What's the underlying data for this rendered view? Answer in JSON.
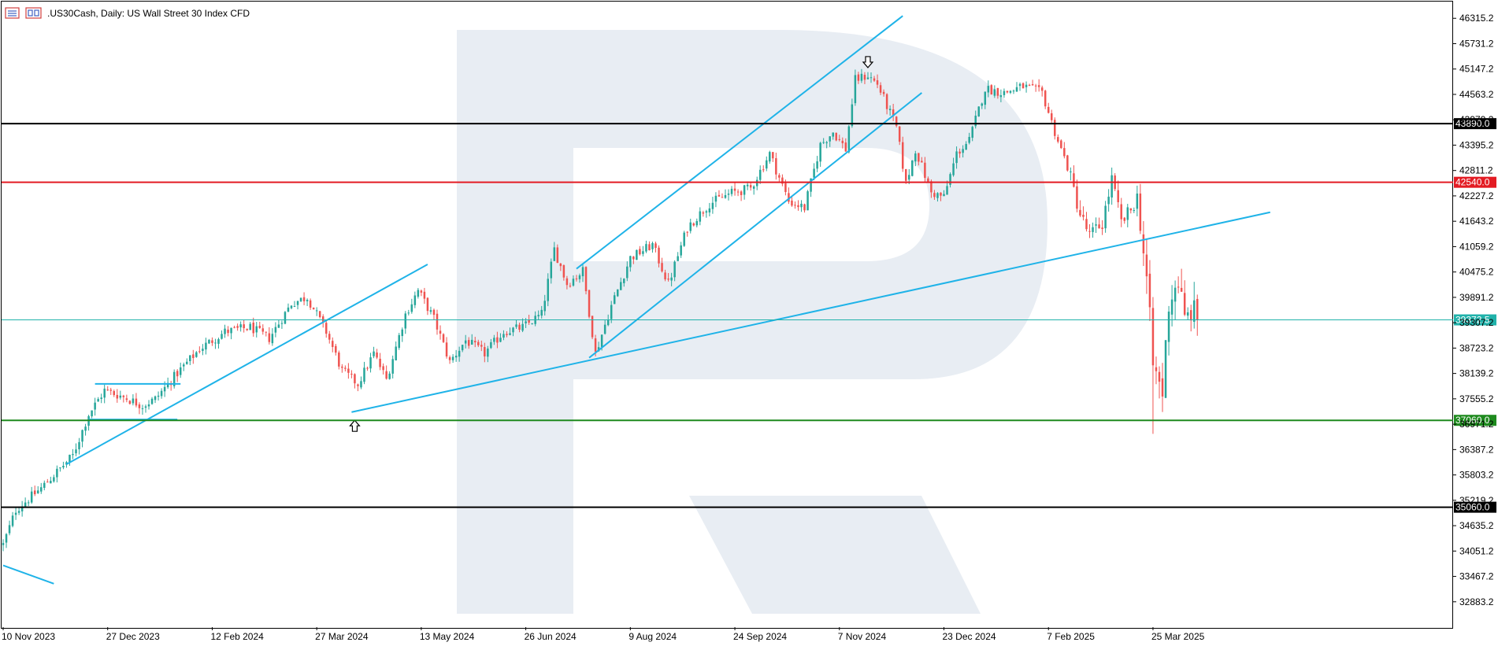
{
  "chart_data": {
    "type": "candlestick",
    "title": ".US30Cash, Daily:  US Wall Street 30 Index CFD",
    "ylim": [
      32300,
      46700
    ],
    "y_ticks": [
      46315.2,
      45731.2,
      45147.2,
      44563.2,
      43979.2,
      43395.2,
      42811.2,
      42227.2,
      41643.2,
      41059.2,
      40475.2,
      39891.2,
      39307.2,
      38723.2,
      38139.2,
      37555.2,
      36971.2,
      36387.2,
      35803.2,
      35219.2,
      34635.2,
      34051.2,
      33467.2,
      32883.2
    ],
    "x_ticks": [
      {
        "label": "10 Nov 2023",
        "t": 0
      },
      {
        "label": "27 Dec 2023",
        "t": 33
      },
      {
        "label": "12 Feb 2024",
        "t": 66
      },
      {
        "label": "27 Mar 2024",
        "t": 99
      },
      {
        "label": "13 May 2024",
        "t": 132
      },
      {
        "label": "26 Jun 2024",
        "t": 165
      },
      {
        "label": "9 Aug 2024",
        "t": 198
      },
      {
        "label": "24 Sep 2024",
        "t": 231
      },
      {
        "label": "7 Nov 2024",
        "t": 264
      },
      {
        "label": "23 Dec 2024",
        "t": 297
      },
      {
        "label": "7 Feb 2025",
        "t": 330
      },
      {
        "label": "25 Mar 2025",
        "t": 363
      }
    ],
    "t_range": [
      0,
      457
    ],
    "current_price": {
      "value": 39372.5,
      "label": "39372.5",
      "color": "#20b2aa"
    },
    "levels": [
      {
        "name": "resistance-2",
        "value": 43890.0,
        "label": "43890.0",
        "color": "#000000"
      },
      {
        "name": "resistance-1",
        "value": 42540.0,
        "label": "42540.0",
        "color": "#e31b23"
      },
      {
        "name": "support-1",
        "value": 37060.0,
        "label": "37060.0",
        "color": "#1e8a1e"
      },
      {
        "name": "support-2",
        "value": 35060.0,
        "label": "35060.0",
        "color": "#000000"
      }
    ],
    "trendlines": [
      {
        "name": "pre-trend-line",
        "from": [
          0,
          33720
        ],
        "to": [
          16,
          33300
        ]
      },
      {
        "name": "rising-support-line-1",
        "from": [
          20,
          36050
        ],
        "to": [
          134,
          40650
        ]
      },
      {
        "name": "flag-upper-line",
        "from": [
          29,
          37900
        ],
        "to": [
          56,
          37900
        ]
      },
      {
        "name": "flag-lower-line",
        "from": [
          27,
          37080
        ],
        "to": [
          55,
          37080
        ]
      },
      {
        "name": "long-term-support-line",
        "from": [
          110,
          37250
        ],
        "to": [
          400,
          41850
        ]
      },
      {
        "name": "channel-upper-line",
        "from": [
          181,
          40550
        ],
        "to": [
          284,
          46370
        ]
      },
      {
        "name": "channel-lower-line",
        "from": [
          185,
          38500
        ],
        "to": [
          290,
          44600
        ]
      }
    ],
    "arrows": [
      {
        "name": "low-arrow-marker",
        "t": 111,
        "value": 37060,
        "direction": "up"
      },
      {
        "name": "peak-arrow-marker",
        "t": 273,
        "value": 45180,
        "direction": "down"
      }
    ],
    "waypoints": [
      [
        0,
        34200
      ],
      [
        4,
        35000
      ],
      [
        12,
        35500
      ],
      [
        22,
        36250
      ],
      [
        27,
        37200
      ],
      [
        32,
        37750
      ],
      [
        38,
        37600
      ],
      [
        44,
        37400
      ],
      [
        48,
        37550
      ],
      [
        55,
        38150
      ],
      [
        62,
        38700
      ],
      [
        70,
        39100
      ],
      [
        78,
        39200
      ],
      [
        84,
        38950
      ],
      [
        91,
        39750
      ],
      [
        96,
        39900
      ],
      [
        102,
        39100
      ],
      [
        107,
        38200
      ],
      [
        112,
        37900
      ],
      [
        117,
        38600
      ],
      [
        121,
        38000
      ],
      [
        127,
        39500
      ],
      [
        131,
        40050
      ],
      [
        136,
        39400
      ],
      [
        141,
        38400
      ],
      [
        146,
        38900
      ],
      [
        152,
        38600
      ],
      [
        158,
        39100
      ],
      [
        164,
        39200
      ],
      [
        170,
        39500
      ],
      [
        174,
        41000
      ],
      [
        178,
        40200
      ],
      [
        183,
        40500
      ],
      [
        187,
        38600
      ],
      [
        192,
        39700
      ],
      [
        198,
        40800
      ],
      [
        205,
        41100
      ],
      [
        210,
        40200
      ],
      [
        216,
        41500
      ],
      [
        223,
        42050
      ],
      [
        230,
        42300
      ],
      [
        236,
        42400
      ],
      [
        242,
        43200
      ],
      [
        248,
        42100
      ],
      [
        253,
        41950
      ],
      [
        258,
        43400
      ],
      [
        262,
        43700
      ],
      [
        266,
        43300
      ],
      [
        269,
        44900
      ],
      [
        273,
        45000
      ],
      [
        276,
        44800
      ],
      [
        282,
        43800
      ],
      [
        285,
        42500
      ],
      [
        288,
        43300
      ],
      [
        293,
        42300
      ],
      [
        297,
        42200
      ],
      [
        301,
        43200
      ],
      [
        305,
        43500
      ],
      [
        310,
        44700
      ],
      [
        316,
        44600
      ],
      [
        322,
        44750
      ],
      [
        328,
        44600
      ],
      [
        332,
        43700
      ],
      [
        336,
        42900
      ],
      [
        340,
        41800
      ],
      [
        343,
        41300
      ],
      [
        347,
        41600
      ],
      [
        350,
        42600
      ],
      [
        353,
        41600
      ],
      [
        356,
        41900
      ],
      [
        358,
        42200
      ],
      [
        361,
        40300
      ],
      [
        363,
        38300
      ],
      [
        366,
        37700
      ],
      [
        368,
        39800
      ],
      [
        371,
        40300
      ],
      [
        373,
        39300
      ],
      [
        375,
        39600
      ],
      [
        377,
        39372
      ]
    ],
    "ohlc_note": "Daily OHLC candles generated from waypoint path; green up, red down."
  }
}
